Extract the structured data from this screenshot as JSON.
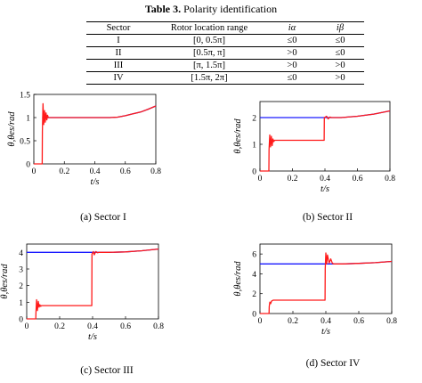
{
  "table": {
    "caption_bold": "Table 3.",
    "caption_text": " Polarity identification",
    "headers": [
      "Sector",
      "Rotor location range",
      "iα",
      "iβ"
    ],
    "rows": [
      [
        "I",
        "[0, 0.5π]",
        "≤0",
        "≤0"
      ],
      [
        "II",
        "[0.5π, π]",
        ">0",
        "≤0"
      ],
      [
        "III",
        "[π, 1.5π]",
        ">0",
        ">0"
      ],
      [
        "IV",
        "[1.5π, 2π]",
        "≤0",
        ">0"
      ]
    ]
  },
  "colors": {
    "actual": "#1a1aff",
    "estimated": "#ff1a1a",
    "axis": "#000000"
  },
  "chart_data": [
    {
      "type": "line",
      "caption": "(a) Sector I",
      "xlabel": "t/s",
      "ylabel": "θ,θes/rad",
      "xlim": [
        0,
        0.8
      ],
      "ylim": [
        0,
        1.5
      ],
      "xticks": [
        0,
        0.2,
        0.4,
        0.6,
        0.8
      ],
      "yticks": [
        0,
        0.5,
        1,
        1.5
      ],
      "ytick_labels": [
        "0",
        "0.5",
        "1",
        "1.5"
      ],
      "series": [
        {
          "color": "blue",
          "x": [
            0.055,
            0.1,
            0.3,
            0.5,
            0.55,
            0.6,
            0.65,
            0.7,
            0.75,
            0.8
          ],
          "y": [
            1.0,
            1.0,
            1.0,
            1.0,
            1.01,
            1.04,
            1.08,
            1.12,
            1.18,
            1.25
          ]
        },
        {
          "color": "red",
          "x": [
            0,
            0.055,
            0.056,
            0.06,
            0.065,
            0.07,
            0.075,
            0.08,
            0.085,
            0.09,
            0.095,
            0.1,
            0.3,
            0.5,
            0.55,
            0.6,
            0.65,
            0.7,
            0.75,
            0.8
          ],
          "y": [
            0,
            0,
            0.7,
            1.3,
            0.85,
            1.15,
            0.9,
            1.1,
            0.95,
            1.05,
            1.0,
            1.0,
            1.0,
            1.0,
            1.01,
            1.04,
            1.08,
            1.12,
            1.18,
            1.25
          ]
        }
      ]
    },
    {
      "type": "line",
      "caption": "(b) Sector II",
      "xlabel": "t/s",
      "ylabel": "θ,θes/rad",
      "xlim": [
        0,
        0.8
      ],
      "ylim": [
        0,
        2.6
      ],
      "xticks": [
        0,
        0.2,
        0.4,
        0.6,
        0.8
      ],
      "yticks": [
        0,
        1,
        2
      ],
      "ytick_labels": [
        "0",
        "1",
        "2"
      ],
      "series": [
        {
          "color": "blue",
          "x": [
            0.0,
            0.2,
            0.4,
            0.5,
            0.6,
            0.7,
            0.8
          ],
          "y": [
            2.0,
            2.0,
            2.0,
            2.0,
            2.05,
            2.13,
            2.25
          ]
        },
        {
          "color": "red",
          "x": [
            0,
            0.055,
            0.056,
            0.06,
            0.065,
            0.07,
            0.075,
            0.08,
            0.085,
            0.09,
            0.1,
            0.2,
            0.395,
            0.396,
            0.41,
            0.42,
            0.43,
            0.44,
            0.5,
            0.6,
            0.7,
            0.8
          ],
          "y": [
            0,
            0,
            0.8,
            1.35,
            0.9,
            1.3,
            0.95,
            1.2,
            1.1,
            1.15,
            1.15,
            1.15,
            1.15,
            2.0,
            2.05,
            1.95,
            2.02,
            2.0,
            2.0,
            2.05,
            2.13,
            2.25
          ]
        }
      ]
    },
    {
      "type": "line",
      "caption": "(c) Sector III",
      "xlabel": "t/s",
      "ylabel": "θ,θes/rad",
      "xlim": [
        0,
        0.8
      ],
      "ylim": [
        0,
        4.5
      ],
      "xticks": [
        0,
        0.2,
        0.4,
        0.6,
        0.8
      ],
      "yticks": [
        0,
        1,
        2,
        3,
        4
      ],
      "ytick_labels": [
        "0",
        "1",
        "2",
        "3",
        "4"
      ],
      "series": [
        {
          "color": "blue",
          "x": [
            0.0,
            0.2,
            0.4,
            0.5,
            0.6,
            0.7,
            0.8
          ],
          "y": [
            4.0,
            4.0,
            4.0,
            4.0,
            4.03,
            4.1,
            4.2
          ]
        },
        {
          "color": "red",
          "x": [
            0,
            0.055,
            0.056,
            0.06,
            0.065,
            0.07,
            0.075,
            0.08,
            0.085,
            0.09,
            0.1,
            0.2,
            0.395,
            0.396,
            0.405,
            0.41,
            0.42,
            0.43,
            0.44,
            0.5,
            0.6,
            0.7,
            0.8
          ],
          "y": [
            0,
            0,
            0.4,
            1.15,
            0.5,
            1.05,
            0.7,
            0.85,
            0.75,
            0.8,
            0.8,
            0.8,
            0.8,
            3.9,
            4.05,
            3.85,
            4.05,
            3.98,
            4.0,
            4.0,
            4.03,
            4.1,
            4.2
          ]
        }
      ]
    },
    {
      "type": "line",
      "caption": "(d) Sector IV",
      "xlabel": "t/s",
      "ylabel": "θ,θes/rad",
      "xlim": [
        0,
        0.8
      ],
      "ylim": [
        0,
        7
      ],
      "xticks": [
        0,
        0.2,
        0.4,
        0.6,
        0.8
      ],
      "yticks": [
        0,
        2,
        4,
        6
      ],
      "ytick_labels": [
        "0",
        "2",
        "4",
        "6"
      ],
      "series": [
        {
          "color": "blue",
          "x": [
            0.0,
            0.2,
            0.4,
            0.5,
            0.6,
            0.7,
            0.8
          ],
          "y": [
            5.0,
            5.0,
            5.0,
            5.0,
            5.05,
            5.12,
            5.25
          ]
        },
        {
          "color": "red",
          "x": [
            0,
            0.055,
            0.056,
            0.06,
            0.065,
            0.07,
            0.08,
            0.1,
            0.2,
            0.395,
            0.396,
            0.4,
            0.405,
            0.41,
            0.42,
            0.43,
            0.44,
            0.45,
            0.5,
            0.6,
            0.7,
            0.8
          ],
          "y": [
            0,
            0,
            0.7,
            1.15,
            1.0,
            1.25,
            1.35,
            1.35,
            1.35,
            1.35,
            4.5,
            6.1,
            5.0,
            5.9,
            5.1,
            5.5,
            5.05,
            5.0,
            5.0,
            5.05,
            5.12,
            5.25
          ]
        }
      ]
    }
  ]
}
